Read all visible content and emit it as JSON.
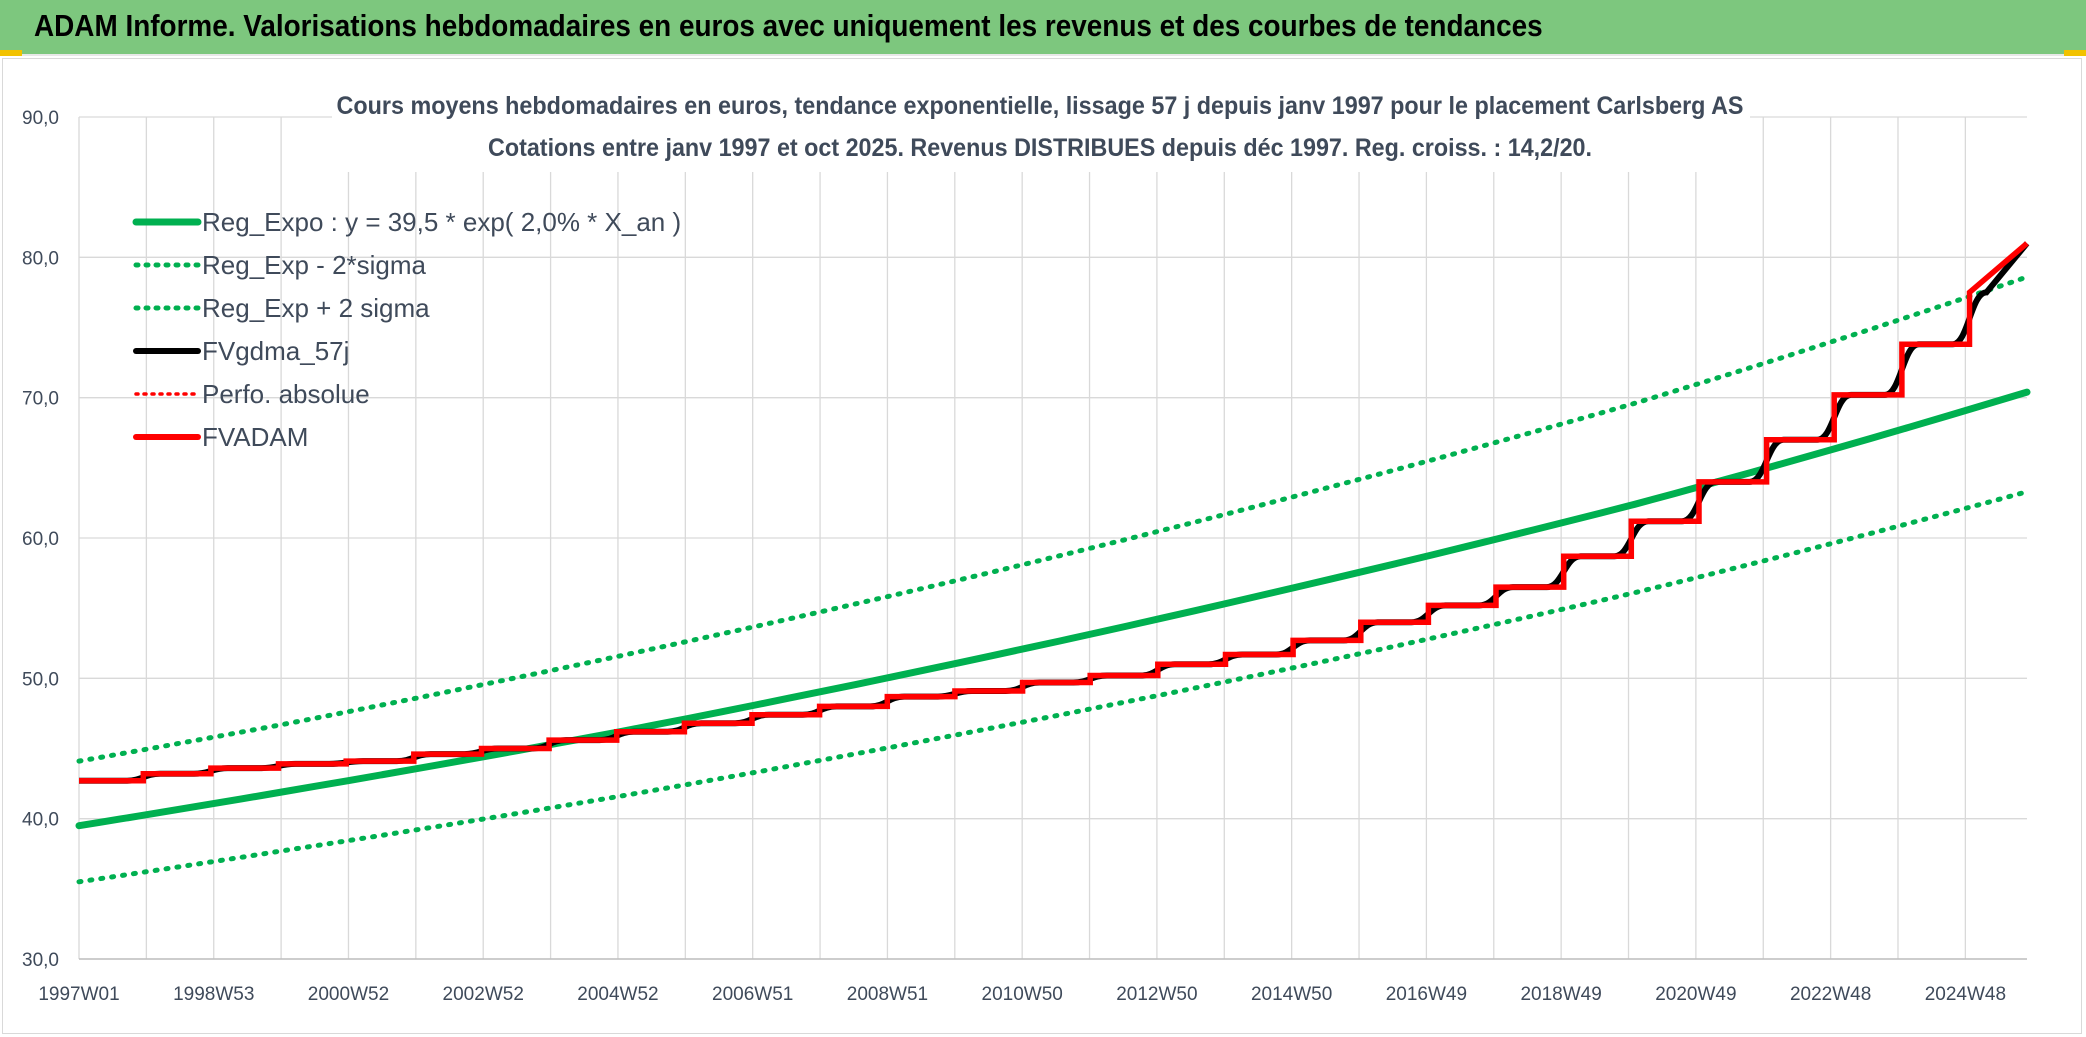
{
  "header": {
    "title": "ADAM Informe. Valorisations hebdomadaires en euros avec uniquement les revenus et des courbes de tendances"
  },
  "colors": {
    "banner": "#7dc77e",
    "trend": "#00b050",
    "fvgdma": "#000000",
    "fvadam": "#ff0000",
    "perfo": "#ff0000"
  },
  "chart_data": {
    "type": "line",
    "title": "Cours moyens hebdomadaires en euros, tendance exponentielle, lissage 57 j depuis janv 1997 pour le placement Carlsberg AS",
    "subtitle": "Cotations entre janv 1997 et oct 2025. Revenus DISTRIBUES depuis déc 1997. Reg. croiss. : 14,2/20.",
    "xlabel": "",
    "ylabel": "",
    "x_tick_labels": [
      "1997W01",
      "1998W53",
      "2000W52",
      "2002W52",
      "2004W52",
      "2006W51",
      "2008W51",
      "2010W50",
      "2012W50",
      "2014W50",
      "2016W49",
      "2018W49",
      "2020W49",
      "2022W48",
      "2024W48"
    ],
    "x_range": [
      "1997W01",
      "2025W41"
    ],
    "y_tick_labels": [
      "30,0",
      "40,0",
      "50,0",
      "60,0",
      "70,0",
      "80,0",
      "90,0"
    ],
    "ylim": [
      30,
      90
    ],
    "grid": true,
    "legend_position": "top-left",
    "series": [
      {
        "name": "Reg_Expo : y = 39,5 * exp( 2,0% *  X_an )",
        "style": "solid-thick",
        "color": "#00b050",
        "x": [
          1997.0,
          2000.0,
          2005.0,
          2010.0,
          2015.0,
          2020.0,
          2025.8
        ],
        "values": [
          39.5,
          41.9,
          46.2,
          51.1,
          56.5,
          62.4,
          70.4
        ]
      },
      {
        "name": "Reg_Exp - 2*sigma",
        "style": "dotted",
        "color": "#00b050",
        "x": [
          1997.0,
          2000.0,
          2005.0,
          2010.0,
          2015.0,
          2020.0,
          2025.8
        ],
        "values": [
          35.5,
          37.7,
          41.6,
          46.0,
          50.8,
          56.1,
          63.3
        ]
      },
      {
        "name": "Reg_Exp + 2 sigma",
        "style": "dotted",
        "color": "#00b050",
        "x": [
          1997.0,
          2000.0,
          2005.0,
          2010.0,
          2015.0,
          2020.0,
          2025.8
        ],
        "values": [
          44.1,
          46.7,
          51.6,
          57.0,
          63.0,
          69.6,
          78.6
        ]
      },
      {
        "name": "FVgdma_57j",
        "style": "solid",
        "color": "#000000"
      },
      {
        "name": "Perfo. absolue",
        "style": "dotted",
        "color": "#ff0000"
      },
      {
        "name": "FVADAM",
        "style": "step",
        "color": "#ff0000",
        "step_x": [
          1997.0,
          1997.95,
          1998.95,
          1999.95,
          2000.95,
          2001.95,
          2002.95,
          2003.95,
          2004.95,
          2005.95,
          2006.95,
          2007.95,
          2008.95,
          2009.95,
          2010.95,
          2011.95,
          2012.95,
          2013.95,
          2014.95,
          2015.95,
          2016.95,
          2017.95,
          2018.95,
          2019.95,
          2020.95,
          2021.95,
          2022.95,
          2023.95,
          2024.95,
          2025.8
        ],
        "values": [
          42.7,
          43.2,
          43.6,
          43.9,
          44.1,
          44.6,
          45.0,
          45.6,
          46.2,
          46.8,
          47.4,
          48.0,
          48.7,
          49.1,
          49.7,
          50.2,
          51.0,
          51.7,
          52.7,
          54.0,
          55.2,
          56.5,
          58.7,
          61.2,
          64.0,
          67.0,
          70.2,
          73.8,
          77.5,
          81.0
        ]
      }
    ]
  }
}
